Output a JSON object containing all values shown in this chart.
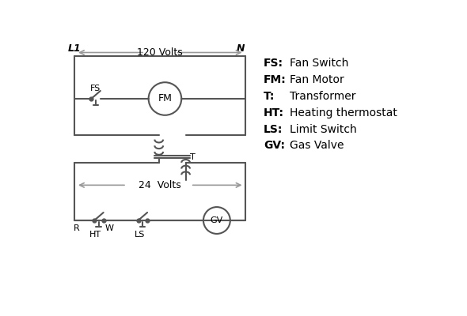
{
  "background_color": "#ffffff",
  "line_color": "#555555",
  "legend_items": [
    [
      "FS:",
      "Fan Switch"
    ],
    [
      "FM:",
      "Fan Motor"
    ],
    [
      "T:",
      "Transformer"
    ],
    [
      "HT:",
      "Heating thermostat"
    ],
    [
      "LS:",
      "Limit Switch"
    ],
    [
      "GV:",
      "Gas Valve"
    ]
  ]
}
